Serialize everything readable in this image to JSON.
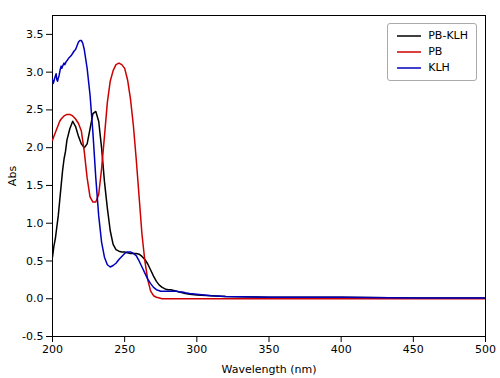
{
  "chart_data": {
    "type": "line",
    "xlabel": "Wavelength (nm)",
    "ylabel": "Abs",
    "xlim": [
      200,
      500
    ],
    "ylim": [
      -0.5,
      3.75
    ],
    "xticks": [
      200,
      250,
      300,
      350,
      400,
      450,
      500
    ],
    "yticks": [
      -0.5,
      {
        "value": 0.0,
        "label": "0.0"
      },
      0.5,
      {
        "value": 1.0,
        "label": "1.0"
      },
      1.5,
      {
        "value": 2.0,
        "label": "2.0"
      },
      2.5,
      {
        "value": 3.0,
        "label": "3.0"
      },
      3.5
    ],
    "legend": "upper right",
    "series": [
      {
        "name": "PB-KLH",
        "color": "#000000",
        "x": [
          200,
          201,
          202,
          203,
          204,
          205,
          206,
          207,
          208,
          209,
          210,
          212,
          214,
          216,
          218,
          220,
          222,
          224,
          226,
          228,
          230,
          232,
          234,
          236,
          238,
          240,
          242,
          244,
          246,
          248,
          250,
          252,
          254,
          256,
          258,
          260,
          262,
          264,
          266,
          268,
          270,
          272,
          274,
          276,
          278,
          280,
          282,
          284,
          286,
          288,
          290,
          292,
          295,
          300,
          310,
          320,
          350,
          400,
          450,
          500
        ],
        "values": [
          0.55,
          0.7,
          0.8,
          0.95,
          1.1,
          1.3,
          1.5,
          1.7,
          1.85,
          1.95,
          2.1,
          2.25,
          2.35,
          2.28,
          2.15,
          2.05,
          2.0,
          2.05,
          2.25,
          2.45,
          2.48,
          2.35,
          2.0,
          1.55,
          1.2,
          0.9,
          0.72,
          0.65,
          0.63,
          0.62,
          0.62,
          0.61,
          0.6,
          0.6,
          0.6,
          0.59,
          0.56,
          0.52,
          0.46,
          0.38,
          0.3,
          0.23,
          0.18,
          0.15,
          0.13,
          0.12,
          0.12,
          0.11,
          0.1,
          0.09,
          0.08,
          0.07,
          0.06,
          0.05,
          0.04,
          0.03,
          0.02,
          0.02,
          0.01,
          0.01
        ]
      },
      {
        "name": "PB",
        "color": "#cc0000",
        "x": [
          200,
          201,
          202,
          203,
          204,
          205,
          206,
          207,
          208,
          209,
          210,
          212,
          214,
          216,
          218,
          220,
          222,
          224,
          226,
          228,
          230,
          232,
          234,
          236,
          238,
          240,
          242,
          244,
          246,
          248,
          250,
          252,
          254,
          256,
          258,
          260,
          262,
          264,
          266,
          268,
          270,
          272,
          274,
          276,
          278,
          280,
          282,
          284,
          286,
          288,
          290,
          292,
          294,
          296,
          298,
          300,
          305,
          310,
          320,
          350,
          400,
          500
        ],
        "values": [
          2.1,
          2.15,
          2.2,
          2.25,
          2.3,
          2.35,
          2.38,
          2.4,
          2.42,
          2.43,
          2.44,
          2.44,
          2.42,
          2.38,
          2.32,
          2.22,
          1.95,
          1.6,
          1.35,
          1.28,
          1.28,
          1.38,
          1.72,
          2.15,
          2.6,
          2.88,
          3.02,
          3.1,
          3.12,
          3.1,
          3.05,
          2.9,
          2.65,
          2.3,
          1.85,
          1.35,
          0.85,
          0.5,
          0.25,
          0.1,
          0.04,
          0.02,
          0.01,
          0.0,
          0.0,
          0.0,
          0.0,
          0.0,
          0.0,
          0.0,
          0.0,
          0.0,
          0.0,
          0.0,
          0.0,
          0.0,
          0.0,
          0.0,
          0.0,
          0.0,
          0.0,
          0.0
        ]
      },
      {
        "name": "KLH",
        "color": "#0000bb",
        "x": [
          200,
          200.5,
          201,
          201.5,
          202,
          202.5,
          203,
          203.5,
          204,
          204.5,
          205,
          205.5,
          206,
          206.5,
          207,
          207.5,
          208,
          208.5,
          209,
          209.5,
          210,
          211,
          212,
          213,
          214,
          215,
          216,
          217,
          218,
          219,
          220,
          221,
          222,
          224,
          226,
          228,
          230,
          232,
          234,
          236,
          238,
          240,
          242,
          244,
          246,
          248,
          250,
          252,
          254,
          256,
          258,
          260,
          262,
          264,
          266,
          268,
          270,
          272,
          275,
          278,
          280,
          282,
          284,
          286,
          288,
          290,
          292,
          295,
          300,
          310,
          320,
          350,
          400,
          450,
          500
        ],
        "values": [
          2.9,
          2.85,
          2.88,
          2.92,
          2.95,
          2.98,
          2.9,
          2.88,
          2.92,
          2.95,
          3.0,
          3.05,
          3.08,
          3.05,
          3.08,
          3.1,
          3.12,
          3.1,
          3.12,
          3.14,
          3.15,
          3.18,
          3.2,
          3.22,
          3.25,
          3.28,
          3.3,
          3.35,
          3.4,
          3.42,
          3.42,
          3.38,
          3.3,
          3.05,
          2.7,
          2.2,
          1.6,
          1.1,
          0.75,
          0.55,
          0.45,
          0.42,
          0.44,
          0.47,
          0.52,
          0.56,
          0.6,
          0.62,
          0.62,
          0.6,
          0.57,
          0.5,
          0.42,
          0.34,
          0.26,
          0.2,
          0.15,
          0.12,
          0.1,
          0.1,
          0.1,
          0.1,
          0.1,
          0.1,
          0.09,
          0.09,
          0.08,
          0.07,
          0.06,
          0.04,
          0.03,
          0.02,
          0.02,
          0.01,
          0.01
        ]
      }
    ]
  }
}
